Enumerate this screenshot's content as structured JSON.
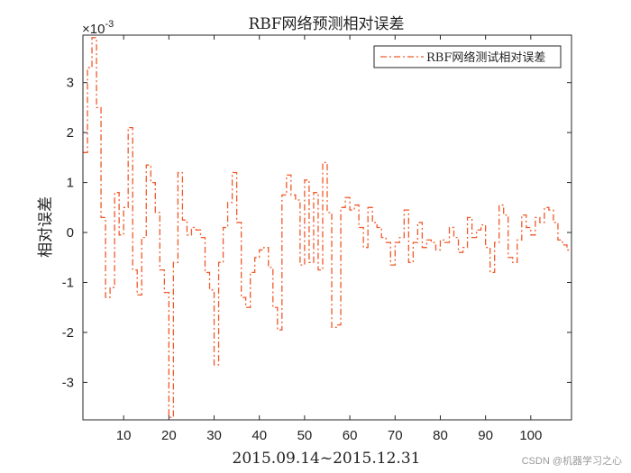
{
  "colors": {
    "series": "#f05a2a",
    "axes": "#262626",
    "background": "#ffffff"
  },
  "watermark": "CSDN @机器学习之心",
  "chart_data": {
    "type": "line",
    "title": "RBF网络预测相对误差",
    "xlabel": "2015.09.14~2015.12.31",
    "ylabel": "相对误差",
    "y_multiplier": "×10",
    "y_exponent": "-3",
    "xlim": [
      1,
      109
    ],
    "ylim": [
      -3.75,
      3.95
    ],
    "xticks": [
      10,
      20,
      30,
      40,
      50,
      60,
      70,
      80,
      90,
      100
    ],
    "yticks": [
      -3,
      -2,
      -1,
      0,
      1,
      2,
      3
    ],
    "grid": false,
    "box": true,
    "legend_position": "top-right",
    "series": [
      {
        "name": "RBF网络测试相对误差",
        "step": true,
        "line_style": "dash-dot",
        "x": [
          1,
          2,
          3,
          4,
          5,
          6,
          7,
          8,
          9,
          10,
          11,
          12,
          13,
          14,
          15,
          16,
          17,
          18,
          19,
          20,
          21,
          22,
          23,
          24,
          25,
          26,
          27,
          28,
          29,
          30,
          31,
          32,
          33,
          34,
          35,
          36,
          37,
          38,
          39,
          40,
          41,
          42,
          43,
          44,
          45,
          46,
          47,
          48,
          49,
          50,
          51,
          52,
          53,
          54,
          55,
          56,
          57,
          58,
          59,
          60,
          61,
          62,
          63,
          64,
          65,
          66,
          67,
          68,
          69,
          70,
          71,
          72,
          73,
          74,
          75,
          76,
          77,
          78,
          79,
          80,
          81,
          82,
          83,
          84,
          85,
          86,
          87,
          88,
          89,
          90,
          91,
          92,
          93,
          94,
          95,
          96,
          97,
          98,
          99,
          100,
          101,
          102,
          103,
          104,
          105,
          106,
          107,
          108,
          109
        ],
        "values": [
          1.6,
          3.3,
          3.9,
          2.5,
          0.3,
          -1.3,
          -1.1,
          0.8,
          -0.05,
          0.5,
          2.1,
          -0.75,
          -1.25,
          -0.1,
          1.35,
          1.0,
          0.4,
          -0.75,
          -1.2,
          -3.7,
          -0.6,
          1.2,
          0.25,
          -0.05,
          0.1,
          0.05,
          -0.1,
          -0.8,
          -1.15,
          -2.65,
          -0.6,
          0.1,
          0.6,
          1.2,
          0.2,
          -1.3,
          -1.5,
          -0.8,
          -0.5,
          -0.35,
          -0.3,
          -0.7,
          -1.5,
          -1.95,
          0.75,
          1.15,
          0.75,
          0.65,
          -0.65,
          1.05,
          -0.6,
          0.8,
          -0.75,
          1.4,
          0.4,
          -1.9,
          -1.85,
          0.5,
          0.7,
          0.45,
          0.55,
          0.1,
          -0.3,
          0.5,
          0.2,
          0.1,
          -0.1,
          -0.2,
          -0.65,
          -0.2,
          -0.1,
          0.45,
          -0.6,
          -0.2,
          0.2,
          -0.3,
          -0.15,
          -0.2,
          -0.35,
          -0.15,
          -0.2,
          0.1,
          -0.1,
          -0.4,
          -0.3,
          0.3,
          -0.1,
          0.05,
          0.15,
          -0.3,
          -0.8,
          -0.2,
          0.55,
          0.35,
          -0.5,
          -0.6,
          -0.15,
          0.35,
          0.1,
          -0.05,
          0.3,
          0.2,
          0.5,
          0.45,
          0.2,
          -0.15,
          -0.25,
          -0.35,
          -0.35
        ]
      }
    ]
  }
}
